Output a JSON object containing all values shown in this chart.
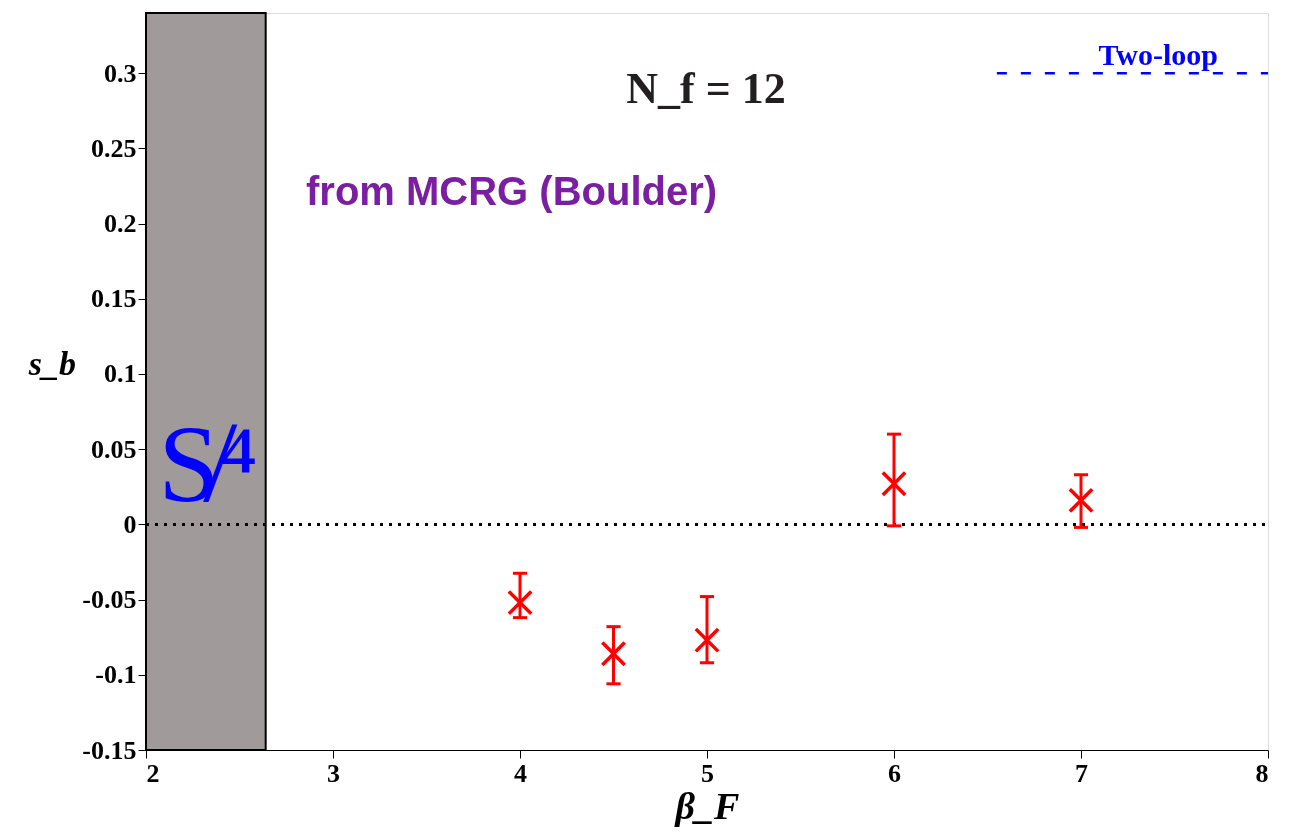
{
  "chart_data": {
    "type": "scatter",
    "title": "N_f = 12",
    "xlabel": "β_F",
    "ylabel": "s_b",
    "x": [
      4,
      4.5,
      5,
      6,
      7
    ],
    "series": [
      {
        "color": "#ff0000",
        "marker": "cross",
        "values": [
          -0.052,
          -0.086,
          -0.077,
          0.027,
          0.016
        ],
        "errors": [
          [
            -0.062,
            -0.0325
          ],
          [
            -0.106,
            -0.068
          ],
          [
            -0.092,
            -0.048
          ],
          [
            -0.001,
            0.06
          ],
          [
            -0.002,
            0.033
          ]
        ]
      },
      {
        "type": "line",
        "name": "Two-loop",
        "color": "#0000ff",
        "line_style": "dashed",
        "x": [
          6.55,
          8
        ],
        "values": [
          0.3,
          0.3
        ]
      }
    ],
    "xlim": [
      2,
      8
    ],
    "xticks": [
      2,
      3,
      4,
      5,
      6,
      7,
      8
    ],
    "ylim": [
      -0.15,
      0.34
    ],
    "yticks": [
      -0.15,
      -0.1,
      -0.05,
      0,
      0.05,
      0.1,
      0.15,
      0.2,
      0.25,
      0.3
    ],
    "ref_lines": [
      {
        "axis": "y",
        "value": 0,
        "color": "#000000",
        "line_style": "dotted"
      }
    ],
    "bands": [
      {
        "axis": "x",
        "from": 2,
        "to": 2.64,
        "color": "#a09a9a"
      }
    ],
    "annotations": [
      "from MCRG (Boulder)",
      "S̸⁴"
    ],
    "grid": false
  }
}
